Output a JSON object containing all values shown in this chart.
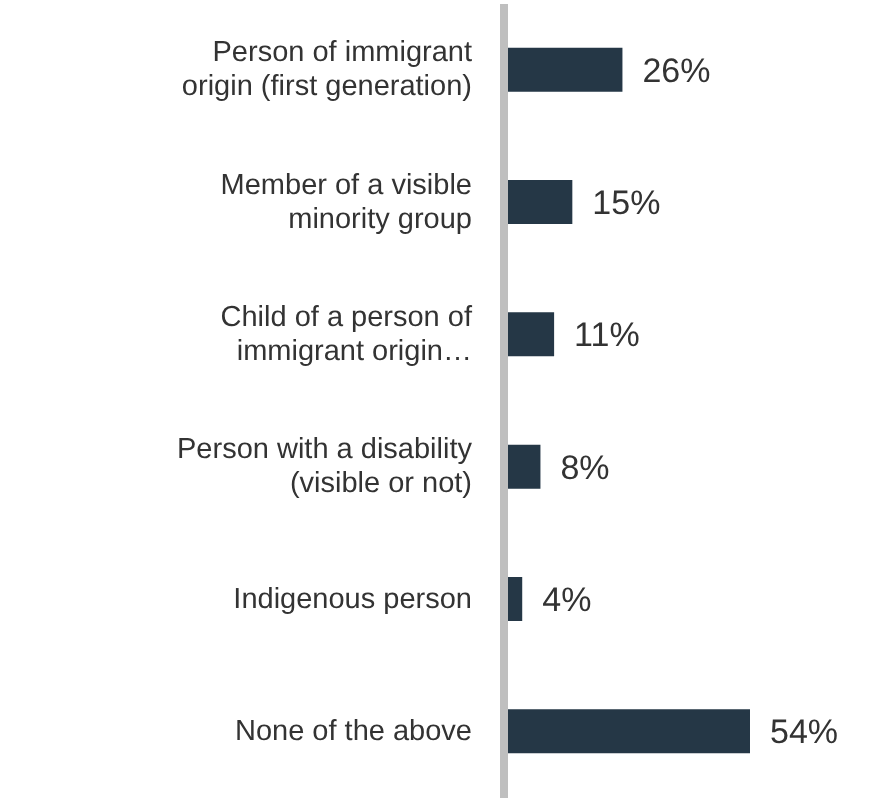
{
  "chart_data": {
    "type": "bar",
    "orientation": "horizontal",
    "categories": [
      "Person of immigrant origin (first generation)",
      "Member of a visible minority group",
      "Child of a person of immigrant origin…",
      "Person with a disability (visible or not)",
      "Indigenous person",
      "None of the above"
    ],
    "values": [
      26,
      15,
      11,
      8,
      4,
      54
    ],
    "value_labels": [
      "26%",
      "15%",
      "11%",
      "8%",
      "4%",
      "54%"
    ],
    "color": "#253746"
  }
}
